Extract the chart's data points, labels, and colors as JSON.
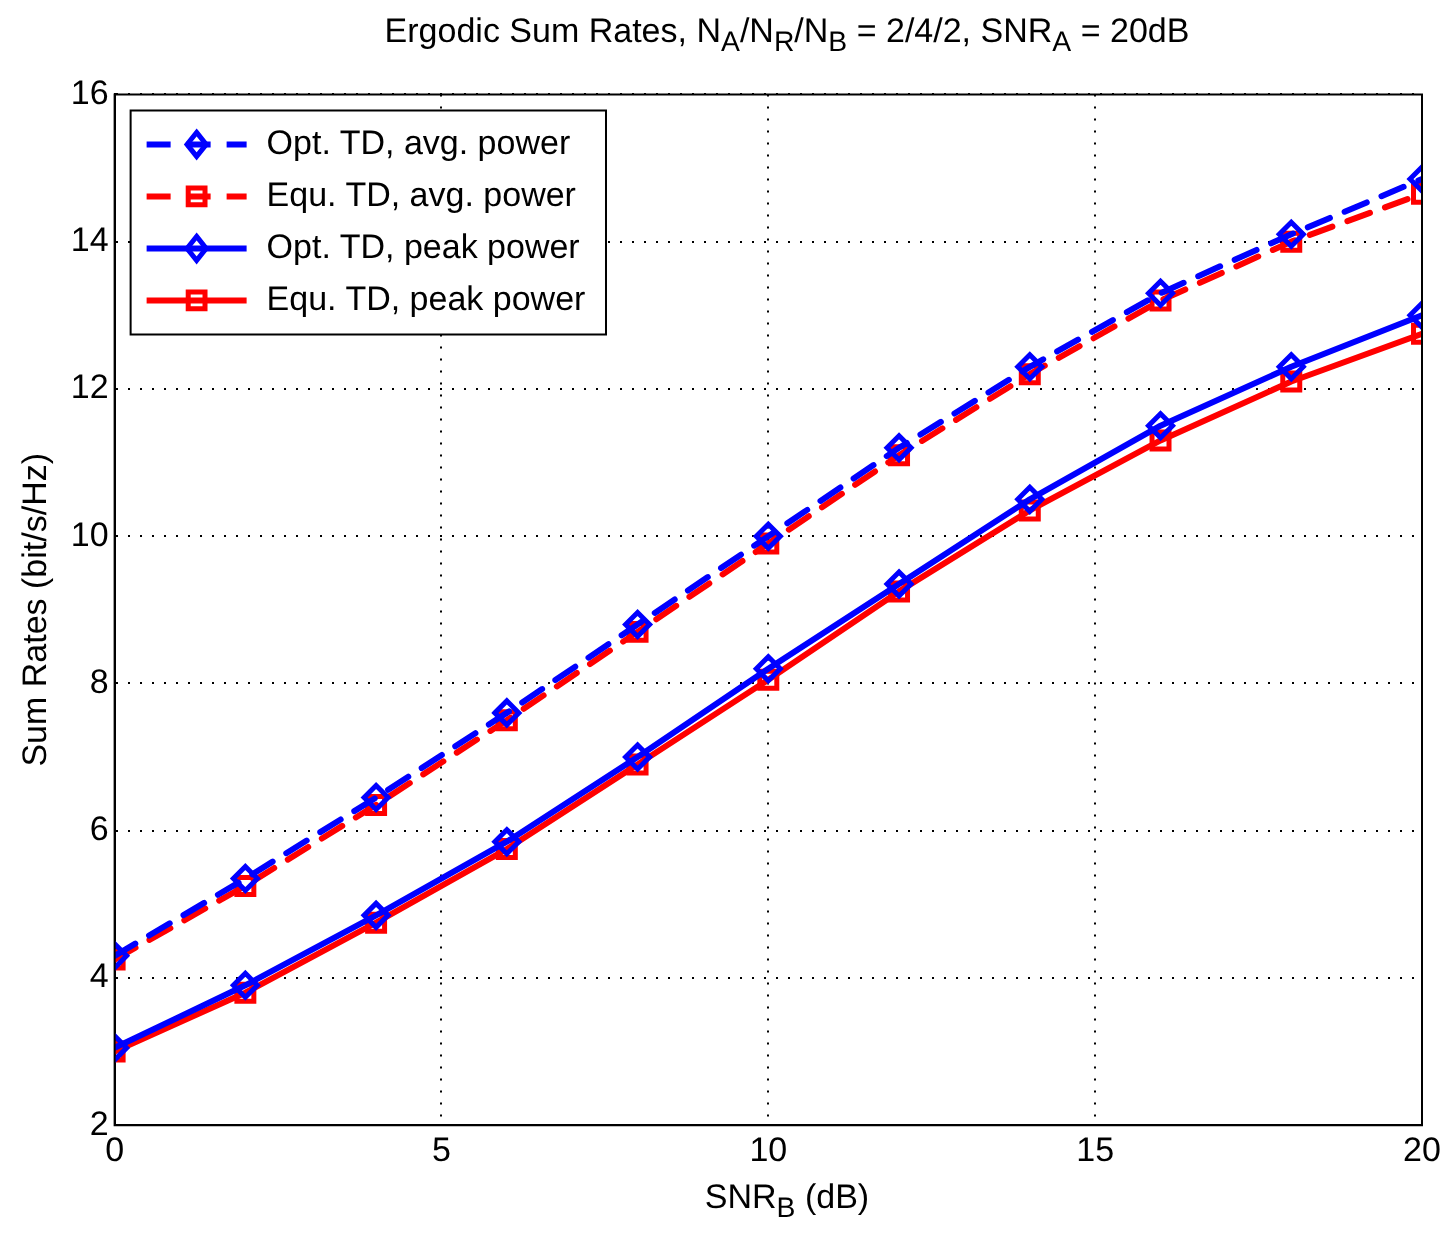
{
  "chart_data": {
    "type": "line",
    "title": "Ergodic Sum Rates, N$_{A}$/N$_{R}$/N$_{B}$ = 2/4/2, SNR$_{A}$ = 20dB",
    "xlabel": "SNR$_{B}$ (dB)",
    "ylabel": "Sum Rates (bit/s/Hz)",
    "x": [
      0,
      2,
      4,
      6,
      8,
      10,
      12,
      14,
      16,
      18,
      20
    ],
    "series": [
      {
        "name": "Opt. TD, avg. power",
        "color": "#0000ff",
        "marker": "diamond",
        "line_style": "dashed",
        "values": [
          4.3,
          5.35,
          6.45,
          7.6,
          8.8,
          10.0,
          11.2,
          12.3,
          13.3,
          14.1,
          14.85
        ]
      },
      {
        "name": "Equ. TD, avg. power",
        "color": "#ff0000",
        "marker": "square",
        "line_style": "dashed",
        "values": [
          4.25,
          5.25,
          6.35,
          7.5,
          8.7,
          9.9,
          11.1,
          12.2,
          13.2,
          14.0,
          14.65
        ]
      },
      {
        "name": "Opt. TD, peak power",
        "color": "#0000ff",
        "marker": "diamond",
        "line_style": "solid",
        "values": [
          3.05,
          3.9,
          4.85,
          5.85,
          7.0,
          8.2,
          9.35,
          10.5,
          11.5,
          12.3,
          13.0
        ]
      },
      {
        "name": "Equ. TD, peak power",
        "color": "#ff0000",
        "marker": "square",
        "line_style": "solid",
        "values": [
          3.0,
          3.8,
          4.75,
          5.75,
          6.9,
          8.05,
          9.25,
          10.35,
          11.3,
          12.1,
          12.75
        ]
      }
    ],
    "xlim": [
      0,
      20
    ],
    "xticks": [
      0,
      5,
      10,
      15,
      20
    ],
    "ylim": [
      2,
      16
    ],
    "yticks": [
      2,
      4,
      6,
      8,
      10,
      12,
      14,
      16
    ],
    "grid": true,
    "legend": "top left"
  }
}
